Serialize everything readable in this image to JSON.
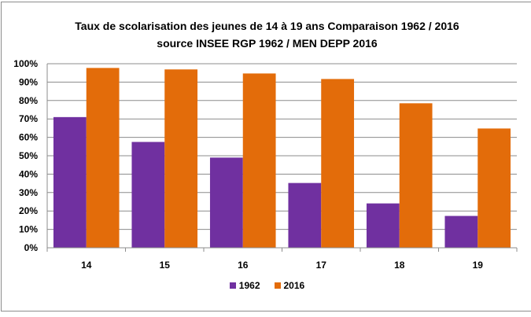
{
  "chart_data": {
    "type": "bar",
    "title": "Taux de scolarisation des jeunes de 14 à 19 ans Comparaison  1962 / 2016",
    "subtitle": "source INSEE RGP 1962 / MEN DEPP 2016",
    "categories": [
      "14",
      "15",
      "16",
      "17",
      "18",
      "19"
    ],
    "series": [
      {
        "name": "1962",
        "color": "#7030a0",
        "values": [
          0.71,
          0.575,
          0.49,
          0.352,
          0.241,
          0.173
        ]
      },
      {
        "name": "2016",
        "color": "#e36c0a",
        "values": [
          0.977,
          0.969,
          0.947,
          0.917,
          0.785,
          0.648
        ]
      }
    ],
    "ylim": [
      0,
      1
    ],
    "yticks": [
      "0%",
      "10%",
      "20%",
      "30%",
      "40%",
      "50%",
      "60%",
      "70%",
      "80%",
      "90%",
      "100%"
    ],
    "grid": true,
    "legend": "bottom"
  }
}
